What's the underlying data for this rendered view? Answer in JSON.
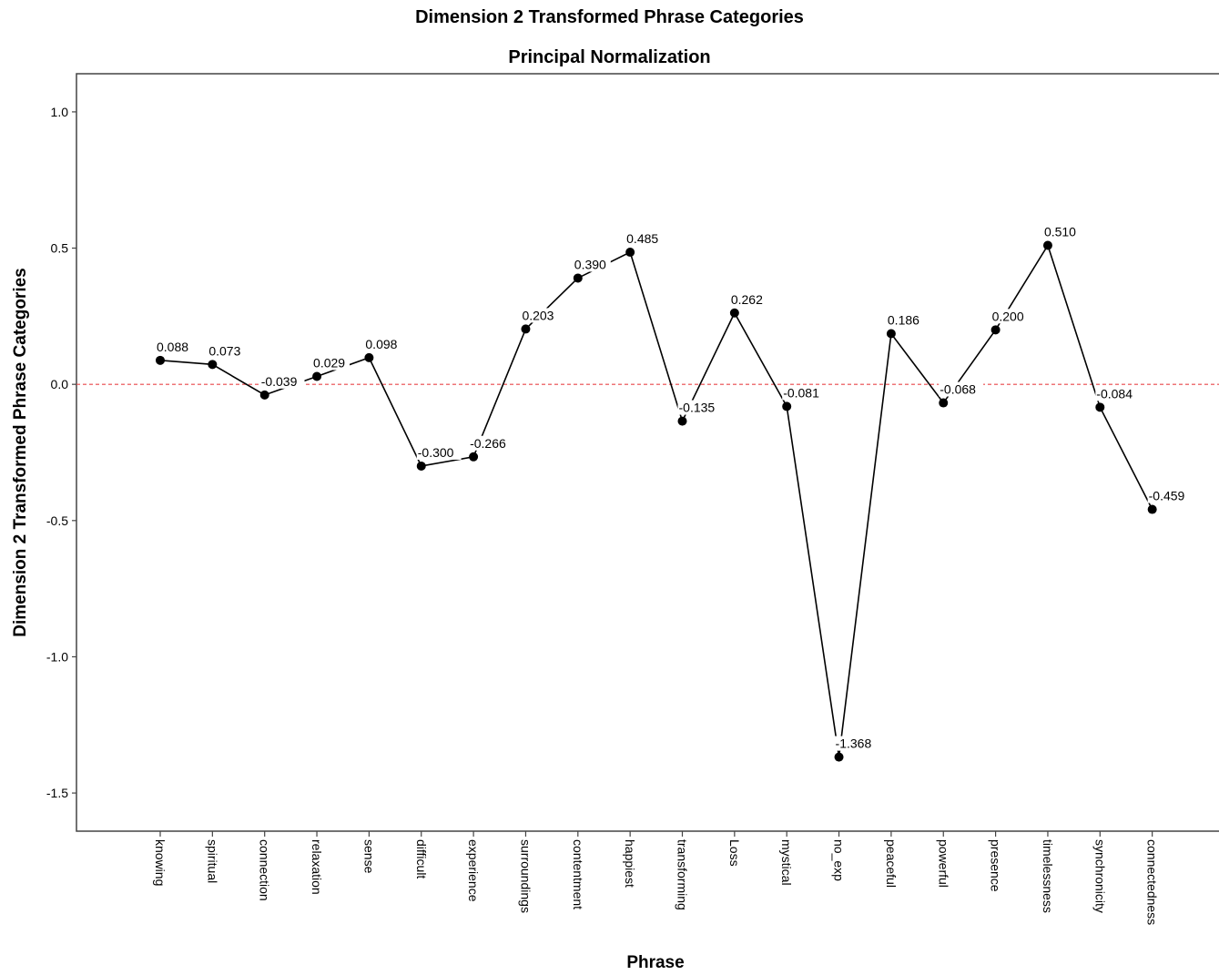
{
  "chart_data": {
    "type": "line",
    "title": "Dimension 2 Transformed Phrase Categories",
    "subtitle": "Principal Normalization",
    "xlabel": "Phrase",
    "ylabel": "Dimension 2 Transformed Phrase Categories",
    "categories": [
      "knowing",
      "spiritual",
      "connection",
      "relaxation",
      "sense",
      "difficult",
      "experience",
      "surroundings",
      "contentment",
      "happiest",
      "transforming",
      "Loss",
      "mystical",
      "no_exp",
      "peaceful",
      "powerful",
      "presence",
      "timelessness",
      "synchronicity",
      "connectedness"
    ],
    "series": [
      {
        "values": [
          0.088,
          0.073,
          -0.039,
          0.029,
          0.098,
          -0.3,
          -0.266,
          0.203,
          0.39,
          0.485,
          -0.135,
          0.262,
          -0.081,
          -1.368,
          0.186,
          -0.068,
          0.2,
          0.51,
          -0.084,
          -0.459
        ],
        "data_labels": [
          "0.088",
          "0.073",
          "-0.039",
          "0.029",
          "0.098",
          "-0.300",
          "-0.266",
          "0.203",
          "0.390",
          "0.485",
          "-0.135",
          "0.262",
          "-0.081",
          "-1.368",
          "0.186",
          "-0.068",
          "0.200",
          "0.510",
          "-0.084",
          "-0.459"
        ]
      }
    ],
    "yticks": [
      1.0,
      0.5,
      0.0,
      -0.5,
      -1.0,
      -1.5
    ],
    "ytick_labels": [
      "1.0",
      "0.5",
      "0.0",
      "-0.5",
      "-1.0",
      "-1.5"
    ],
    "ylim": [
      -1.64,
      1.14
    ],
    "reference_line": {
      "y": 0.0,
      "style": "dashed",
      "color": "#e8474a"
    },
    "line_color": "#000000",
    "marker_color": "#000000",
    "grid": false,
    "legend": false
  }
}
